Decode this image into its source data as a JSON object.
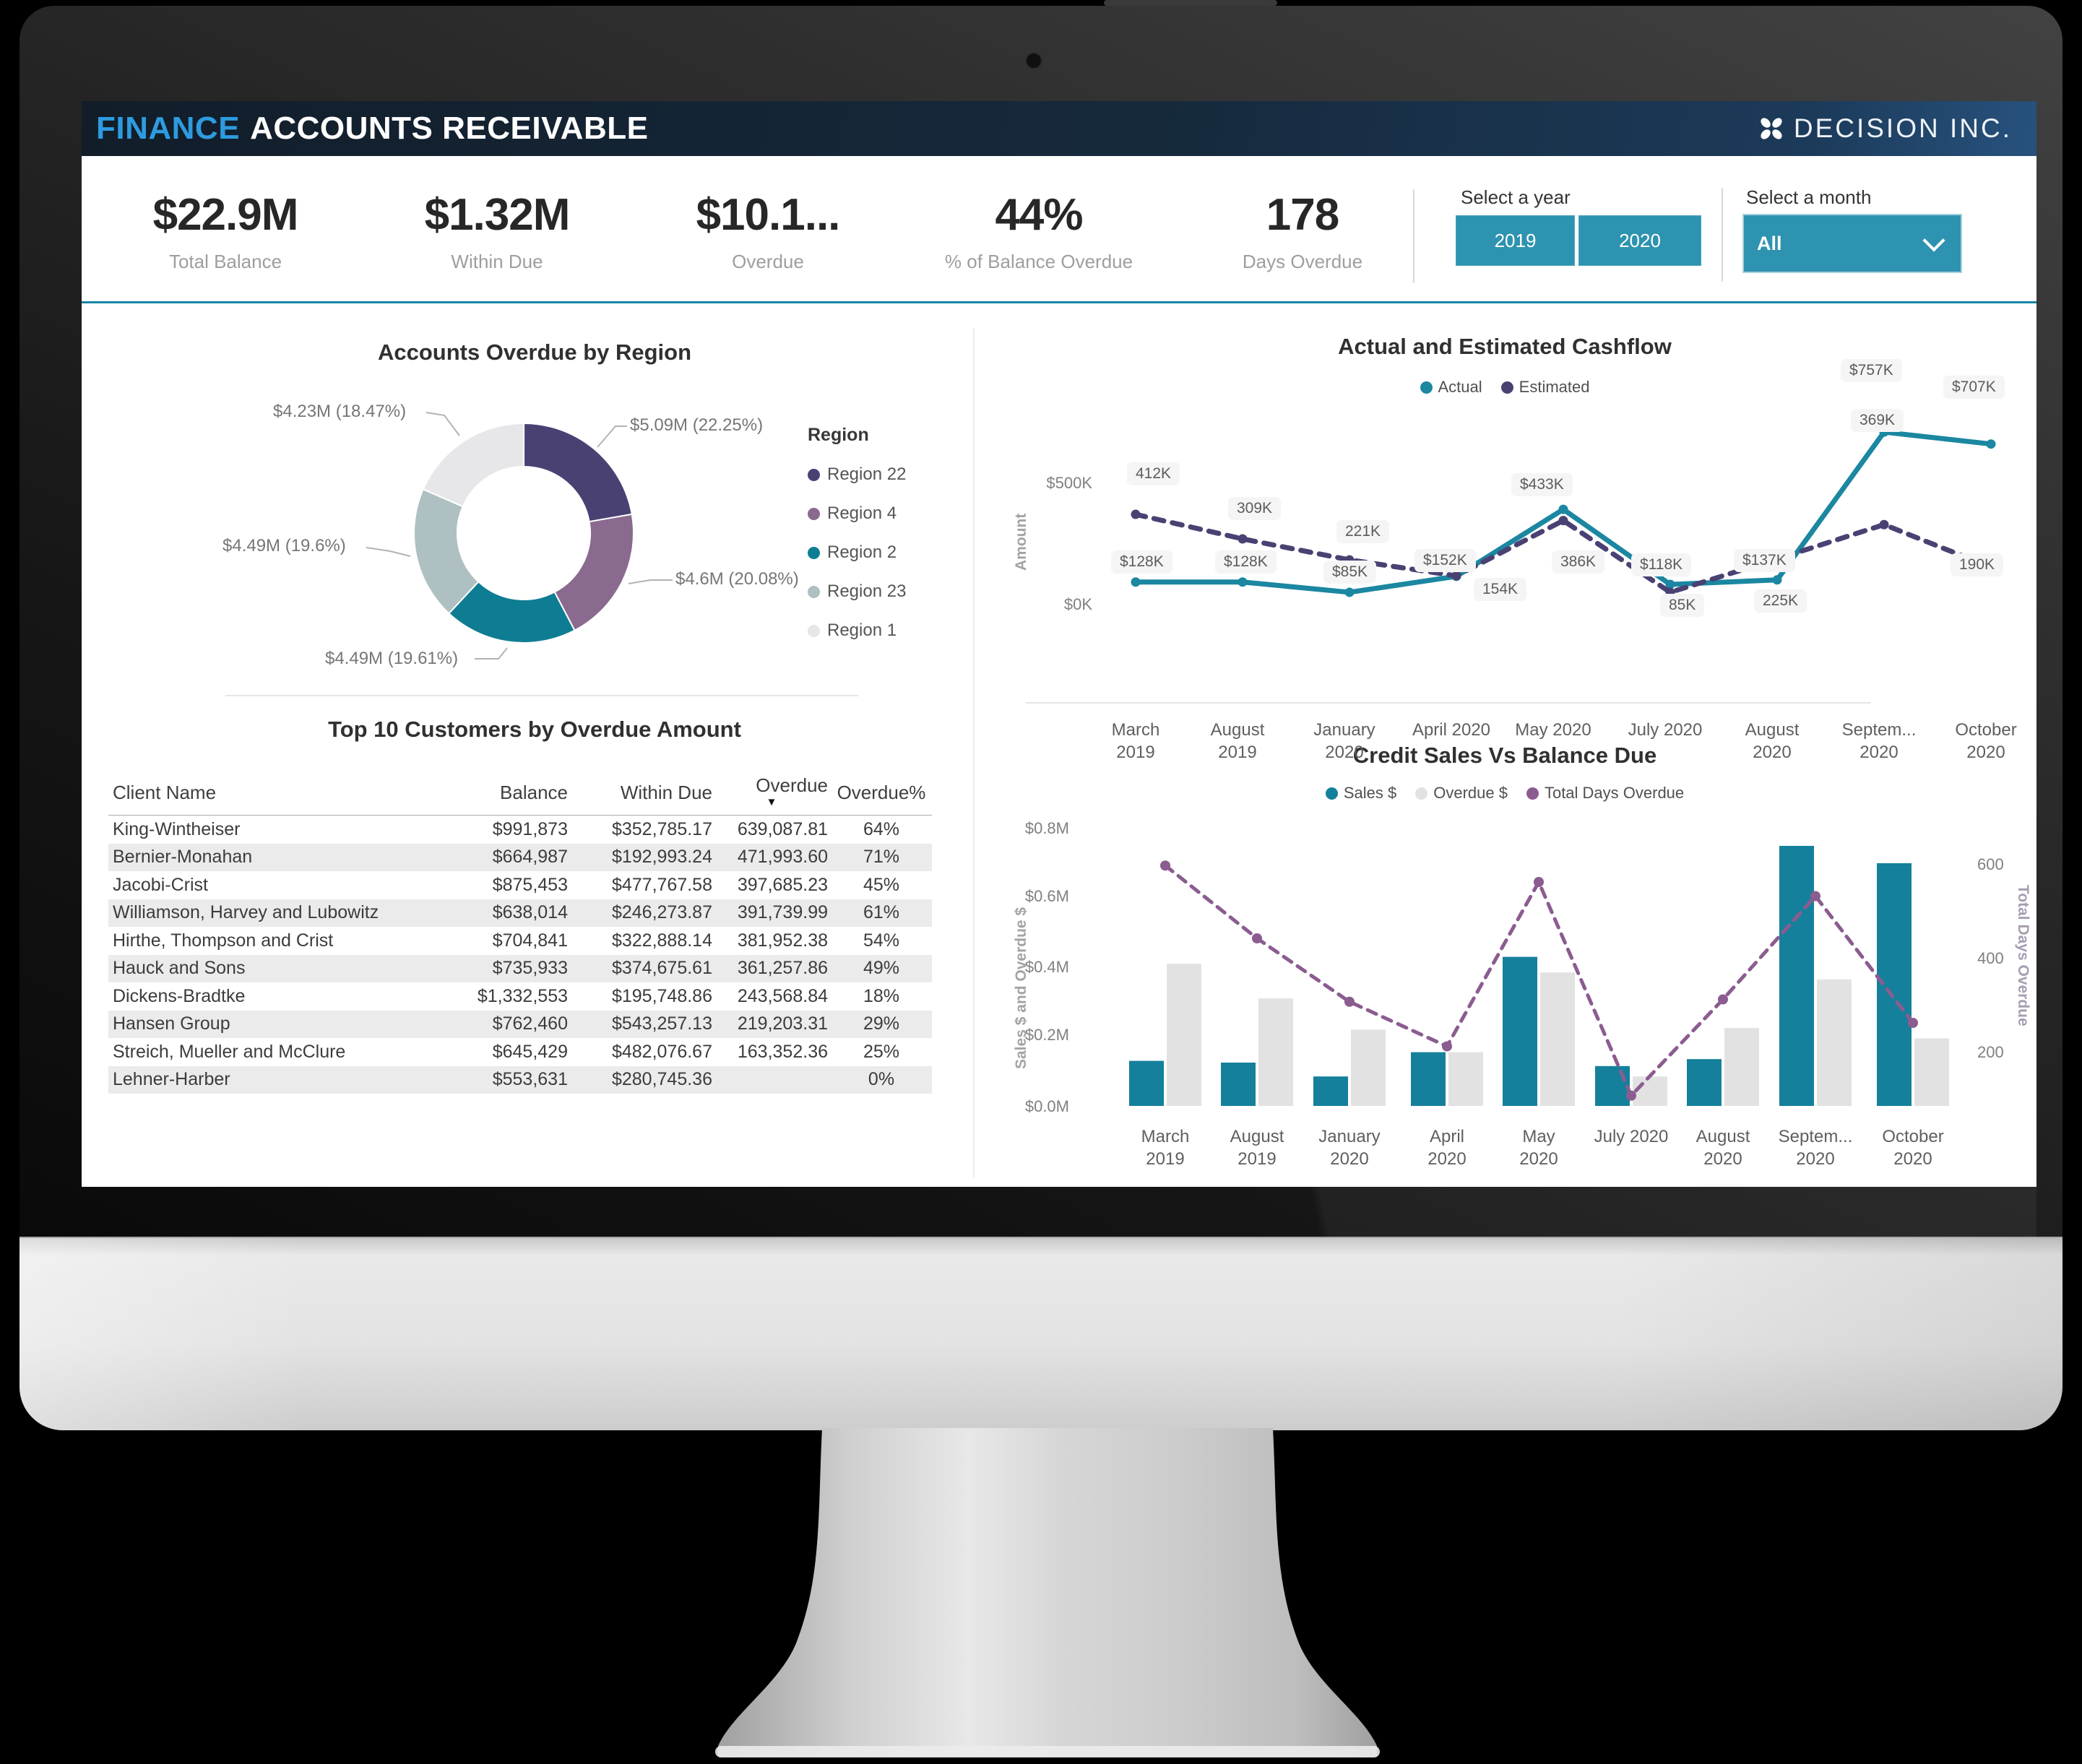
{
  "header": {
    "title_primary": "FINANCE",
    "title_secondary": "ACCOUNTS RECEIVABLE",
    "brand": "DECISION INC."
  },
  "kpis": [
    {
      "value": "$22.9M",
      "label": "Total Balance"
    },
    {
      "value": "$1.32M",
      "label": "Within Due"
    },
    {
      "value": "$10.1...",
      "label": "Overdue"
    },
    {
      "value": "44%",
      "label": "% of Balance Overdue"
    },
    {
      "value": "178",
      "label": "Days Overdue"
    }
  ],
  "filters": {
    "year": {
      "label": "Select a year",
      "options": [
        "2019",
        "2020"
      ]
    },
    "month": {
      "label": "Select a month",
      "value": "All"
    }
  },
  "chart_data": [
    {
      "type": "pie",
      "donut": true,
      "title": "Accounts Overdue by Region",
      "legend_title": "Region",
      "slices": [
        {
          "label": "Region 22",
          "value_label": "$5.09M (22.25%)",
          "pct": 22.25,
          "color": "#4A4173"
        },
        {
          "label": "Region 4",
          "value_label": "$4.6M (20.08%)",
          "pct": 20.08,
          "color": "#8A6A8F"
        },
        {
          "label": "Region 2",
          "value_label": "$4.49M (19.61%)",
          "pct": 19.61,
          "color": "#0E7D93"
        },
        {
          "label": "Region 23",
          "value_label": "$4.49M (19.6%)",
          "pct": 19.6,
          "color": "#AEC0C1"
        },
        {
          "label": "Region 1",
          "value_label": "$4.23M (18.47%)",
          "pct": 18.47,
          "color": "#E7E7E9"
        }
      ]
    },
    {
      "type": "line",
      "title": "Actual and Estimated Cashflow",
      "ylabel": "Amount",
      "yticks": [
        "$500K",
        "$0K"
      ],
      "ylim_k": [
        0,
        500
      ],
      "categories": [
        [
          "March",
          "2019"
        ],
        [
          "August",
          "2019"
        ],
        [
          "January",
          "2020"
        ],
        [
          "April 2020"
        ],
        [
          "May 2020"
        ],
        [
          "July 2020"
        ],
        [
          "August",
          "2020"
        ],
        [
          "Septem...",
          "2020"
        ],
        [
          "October",
          "2020"
        ]
      ],
      "series": [
        {
          "name": "Actual",
          "color": "#1B87A1",
          "dash": false,
          "values_k": [
            128,
            128,
            85,
            152,
            433,
            118,
            137,
            757,
            707
          ],
          "point_labels": [
            "$128K",
            "$128K",
            "$85K",
            "$152K",
            "$433K",
            "$118K",
            "$137K",
            "$757K",
            "$707K"
          ]
        },
        {
          "name": "Estimated",
          "color": "#4A4173",
          "dash": true,
          "values_k": [
            412,
            309,
            221,
            154,
            386,
            85,
            225,
            369,
            190
          ],
          "point_labels": [
            "412K",
            "309K",
            "221K",
            "154K",
            "386K",
            "85K",
            "225K",
            "369K",
            "190K"
          ]
        }
      ]
    },
    {
      "type": "bar",
      "title": "Credit Sales Vs Balance Due",
      "ylabel_left": "Sales $ and Overdue $",
      "ylabel_right": "Total Days Overdue",
      "yticks_left": [
        "$0.8M",
        "$0.6M",
        "$0.4M",
        "$0.2M",
        "$0.0M"
      ],
      "yticks_right": [
        "600",
        "400",
        "200"
      ],
      "ylim_left_m": [
        0,
        0.8
      ],
      "categories": [
        [
          "March",
          "2019"
        ],
        [
          "August",
          "2019"
        ],
        [
          "January",
          "2020"
        ],
        [
          "April",
          "2020"
        ],
        [
          "May",
          "2020"
        ],
        [
          "July 2020"
        ],
        [
          "August",
          "2020"
        ],
        [
          "Septem...",
          "2020"
        ],
        [
          "October",
          "2020"
        ]
      ],
      "series": [
        {
          "name": "Sales $",
          "type": "bar",
          "color": "#15809B",
          "values_m": [
            0.13,
            0.125,
            0.085,
            0.155,
            0.43,
            0.115,
            0.135,
            0.75,
            0.7
          ]
        },
        {
          "name": "Overdue $",
          "type": "bar",
          "color": "#E2E2E2",
          "values_m": [
            0.41,
            0.31,
            0.22,
            0.155,
            0.385,
            0.085,
            0.225,
            0.365,
            0.195
          ]
        },
        {
          "name": "Total Days Overdue",
          "type": "line",
          "color": "#8B5C90",
          "values_days": [
            615,
            460,
            325,
            230,
            580,
            125,
            330,
            550,
            280
          ]
        }
      ]
    }
  ],
  "customers_table": {
    "title": "Top 10 Customers by Overdue Amount",
    "columns": [
      "Client Name",
      "Balance",
      "Within Due",
      "Overdue",
      "Overdue%"
    ],
    "sort_column": "Overdue",
    "rows": [
      [
        "King-Wintheiser",
        "$991,873",
        "$352,785.17",
        "639,087.81",
        "64%"
      ],
      [
        "Bernier-Monahan",
        "$664,987",
        "$192,993.24",
        "471,993.60",
        "71%"
      ],
      [
        "Jacobi-Crist",
        "$875,453",
        "$477,767.58",
        "397,685.23",
        "45%"
      ],
      [
        "Williamson, Harvey and Lubowitz",
        "$638,014",
        "$246,273.87",
        "391,739.99",
        "61%"
      ],
      [
        "Hirthe, Thompson and Crist",
        "$704,841",
        "$322,888.14",
        "381,952.38",
        "54%"
      ],
      [
        "Hauck and Sons",
        "$735,933",
        "$374,675.61",
        "361,257.86",
        "49%"
      ],
      [
        "Dickens-Bradtke",
        "$1,332,553",
        "$195,748.86",
        "243,568.84",
        "18%"
      ],
      [
        "Hansen Group",
        "$762,460",
        "$543,257.13",
        "219,203.31",
        "29%"
      ],
      [
        "Streich, Mueller and McClure",
        "$645,429",
        "$482,076.67",
        "163,352.36",
        "25%"
      ],
      [
        "Lehner-Harber",
        "$553,631",
        "$280,745.36",
        "",
        "0%"
      ]
    ]
  }
}
